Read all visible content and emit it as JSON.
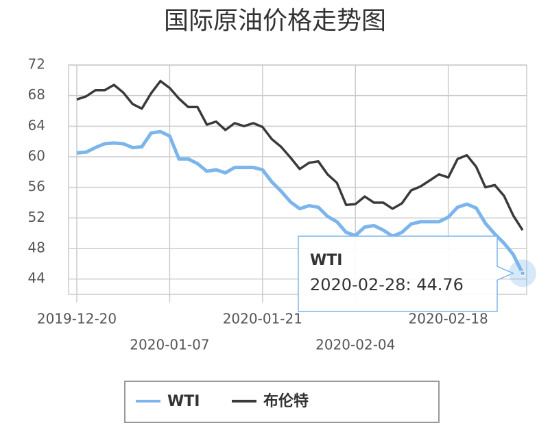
{
  "chart_data": {
    "type": "line",
    "title": "国际原油价格走势图",
    "categories": [
      "2019-12-20",
      null,
      null,
      null,
      null,
      null,
      null,
      null,
      null,
      null,
      "2020-01-07",
      null,
      null,
      null,
      null,
      null,
      null,
      null,
      null,
      null,
      "2020-01-21",
      null,
      null,
      null,
      null,
      null,
      null,
      null,
      null,
      null,
      "2020-02-04",
      null,
      null,
      null,
      null,
      null,
      null,
      null,
      null,
      null,
      "2020-02-18",
      null,
      null,
      null,
      null,
      null,
      null,
      null,
      null
    ],
    "series": [
      {
        "name": "WTI",
        "color": "#7cb5ec",
        "values": [
          60.5,
          60.6,
          61.2,
          61.7,
          61.8,
          61.7,
          61.2,
          61.3,
          63.1,
          63.3,
          62.7,
          59.7,
          59.7,
          59.1,
          58.1,
          58.3,
          57.9,
          58.6,
          58.6,
          58.6,
          58.3,
          56.7,
          55.5,
          54.1,
          53.2,
          53.6,
          53.4,
          52.2,
          51.5,
          50.1,
          49.7,
          50.8,
          51.0,
          50.4,
          49.6,
          50.1,
          51.2,
          51.5,
          51.5,
          51.5,
          52.1,
          53.4,
          53.8,
          53.3,
          51.3,
          49.9,
          48.7,
          47.2,
          44.76
        ]
      },
      {
        "name": "布伦特",
        "color": "#3a3a3c",
        "values": [
          67.5,
          67.9,
          68.7,
          68.7,
          69.4,
          68.4,
          66.9,
          66.3,
          68.3,
          69.9,
          69.0,
          67.6,
          66.5,
          66.5,
          64.2,
          64.6,
          63.5,
          64.4,
          64.0,
          64.4,
          63.9,
          62.3,
          61.3,
          59.9,
          58.4,
          59.2,
          59.4,
          57.7,
          56.6,
          53.7,
          53.8,
          54.8,
          54.0,
          54.0,
          53.2,
          53.9,
          55.6,
          56.1,
          56.9,
          57.7,
          57.3,
          59.7,
          60.2,
          58.7,
          56.0,
          56.3,
          54.9,
          52.3,
          50.4
        ]
      }
    ],
    "ylim": [
      42,
      72
    ],
    "yticks": [
      44,
      48,
      52,
      56,
      60,
      64,
      68,
      72
    ],
    "grid": true,
    "tooltip": {
      "text": "2020-02-28: 44.76"
    }
  }
}
